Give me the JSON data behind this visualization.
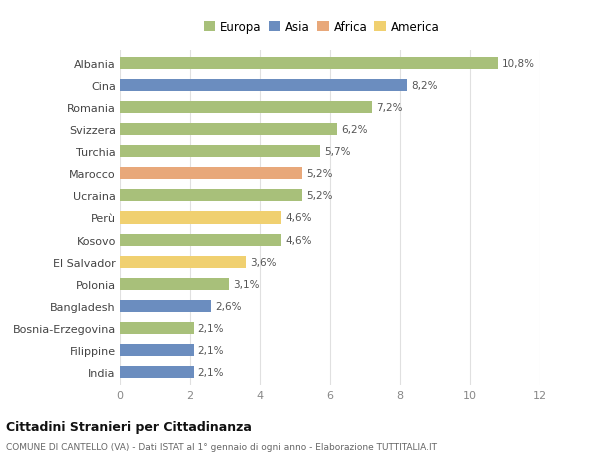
{
  "countries": [
    "Albania",
    "Cina",
    "Romania",
    "Svizzera",
    "Turchia",
    "Marocco",
    "Ucraina",
    "Perù",
    "Kosovo",
    "El Salvador",
    "Polonia",
    "Bangladesh",
    "Bosnia-Erzegovina",
    "Filippine",
    "India"
  ],
  "values": [
    10.8,
    8.2,
    7.2,
    6.2,
    5.7,
    5.2,
    5.2,
    4.6,
    4.6,
    3.6,
    3.1,
    2.6,
    2.1,
    2.1,
    2.1
  ],
  "labels": [
    "10,8%",
    "8,2%",
    "7,2%",
    "6,2%",
    "5,7%",
    "5,2%",
    "5,2%",
    "4,6%",
    "4,6%",
    "3,6%",
    "3,1%",
    "2,6%",
    "2,1%",
    "2,1%",
    "2,1%"
  ],
  "continents": [
    "Europa",
    "Asia",
    "Europa",
    "Europa",
    "Europa",
    "Africa",
    "Europa",
    "America",
    "Europa",
    "America",
    "Europa",
    "Asia",
    "Europa",
    "Asia",
    "Asia"
  ],
  "colors": {
    "Europa": "#a8c07a",
    "Asia": "#6b8dbf",
    "Africa": "#e8a87a",
    "America": "#f0d070"
  },
  "legend_order": [
    "Europa",
    "Asia",
    "Africa",
    "America"
  ],
  "xlim": [
    0,
    12
  ],
  "xticks": [
    0,
    2,
    4,
    6,
    8,
    10,
    12
  ],
  "title": "Cittadini Stranieri per Cittadinanza",
  "subtitle": "COMUNE DI CANTELLO (VA) - Dati ISTAT al 1° gennaio di ogni anno - Elaborazione TUTTITALIA.IT",
  "bg_color": "#ffffff",
  "grid_color": "#e0e0e0",
  "bar_height": 0.55
}
